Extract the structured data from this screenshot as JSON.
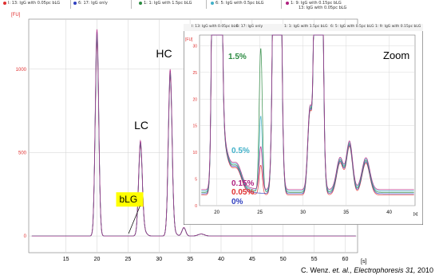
{
  "legend": [
    {
      "label": "I: 13: IgG with 0.05pc bLG",
      "color": "#e03030"
    },
    {
      "label": "6: 17: IgG only",
      "color": "#3040c0"
    },
    {
      "label": "1: 1: IgG with 1.5pc bLG",
      "color": "#2a8a40"
    },
    {
      "label": "6: 5: IgG with 0.5pc bLG",
      "color": "#40b0c8"
    },
    {
      "label": "1: 9: IgG with 0.15pc bLG",
      "color": "#b02080"
    }
  ],
  "legend_extra": "13: IgG with 0.05pc bLG",
  "chart_data": [
    {
      "type": "line",
      "ylabel": "[FU]",
      "xlabel": "[s]",
      "xlim": [
        9,
        62
      ],
      "ylim": [
        -100,
        1300
      ],
      "xticks": [
        15,
        20,
        25,
        30,
        35,
        40,
        45,
        50,
        55,
        60
      ],
      "yticks": [
        0,
        500,
        1000
      ],
      "grid": true,
      "peaks": [
        {
          "name": "first",
          "x": 20.0,
          "y": 1210
        },
        {
          "name": "LC",
          "x": 27.0,
          "y": 550
        },
        {
          "name": "HC",
          "x": 31.8,
          "y": 970
        },
        {
          "name": "small",
          "x": 34.0,
          "y": 50
        }
      ],
      "annotations": [
        {
          "text": "LC",
          "x": 26.0,
          "y": 640
        },
        {
          "text": "HC",
          "x": 29.5,
          "y": 1070
        },
        {
          "text": "bLG",
          "x": 23.6,
          "y": 200
        }
      ]
    },
    {
      "type": "line",
      "title": "Zoom",
      "ylabel": "[FU]",
      "xlabel": "[s]",
      "xlim": [
        18,
        43
      ],
      "ylim": [
        0,
        32
      ],
      "xticks": [
        20,
        25,
        30,
        35,
        40
      ],
      "yticks": [
        0,
        5,
        10,
        15,
        20,
        25,
        30
      ],
      "grid": true,
      "annotations": [
        {
          "text": "1.5%",
          "color": "#2a8a40"
        },
        {
          "text": "0.5%",
          "color": "#40b0c8"
        },
        {
          "text": "0.15%",
          "color": "#b02080"
        },
        {
          "text": "0.05%",
          "color": "#e03030"
        },
        {
          "text": "0%",
          "color": "#3040c0"
        }
      ]
    }
  ],
  "citation": {
    "authors": "C. Wenz. ",
    "etal": "et. al.,",
    "journal": " Electrophoresis 31,",
    "year": " 2010"
  }
}
